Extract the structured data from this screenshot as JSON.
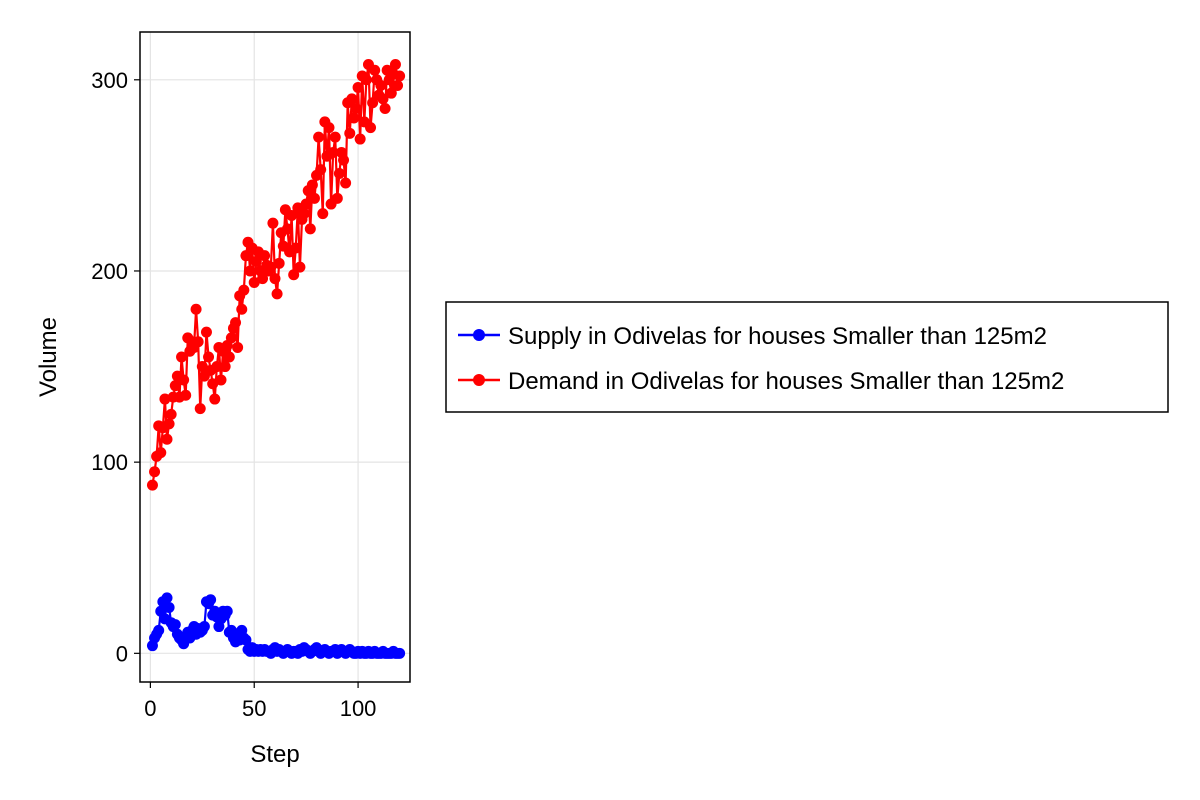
{
  "chart_data": {
    "type": "line",
    "title": "",
    "xlabel": "Step",
    "ylabel": "Volume",
    "xlim": [
      -5,
      125
    ],
    "ylim": [
      -15,
      325
    ],
    "xticks": [
      0,
      50,
      100
    ],
    "yticks": [
      0,
      100,
      200,
      300
    ],
    "xtick_labels": [
      "0",
      "50",
      "100"
    ],
    "ytick_labels": [
      "0",
      "100",
      "200",
      "300"
    ],
    "grid": true,
    "legend_position": "right",
    "series": [
      {
        "name": "Supply in Odivelas for houses Smaller than 125m2",
        "color": "#0000ff",
        "marker": "circle",
        "x": [
          1,
          2,
          3,
          4,
          5,
          6,
          7,
          8,
          9,
          10,
          11,
          12,
          13,
          14,
          15,
          16,
          17,
          18,
          19,
          20,
          21,
          22,
          23,
          24,
          25,
          26,
          27,
          28,
          29,
          30,
          31,
          32,
          33,
          34,
          35,
          36,
          37,
          38,
          39,
          40,
          41,
          42,
          43,
          44,
          45,
          46,
          47,
          48,
          49,
          50,
          51,
          52,
          53,
          54,
          55,
          56,
          57,
          58,
          59,
          60,
          61,
          62,
          63,
          64,
          65,
          66,
          67,
          68,
          69,
          70,
          71,
          72,
          73,
          74,
          75,
          76,
          77,
          78,
          79,
          80,
          81,
          82,
          83,
          84,
          85,
          86,
          87,
          88,
          89,
          90,
          91,
          92,
          93,
          94,
          95,
          96,
          97,
          98,
          99,
          100,
          101,
          102,
          103,
          104,
          105,
          106,
          107,
          108,
          109,
          110,
          111,
          112,
          113,
          114,
          115,
          116,
          117,
          118,
          119,
          120
        ],
        "y": [
          4,
          8,
          10,
          12,
          22,
          27,
          18,
          29,
          24,
          16,
          14,
          15,
          10,
          8,
          7,
          5,
          9,
          11,
          8,
          12,
          14,
          10,
          13,
          11,
          12,
          14,
          27,
          26,
          28,
          20,
          22,
          19,
          14,
          18,
          22,
          20,
          22,
          11,
          12,
          8,
          6,
          10,
          7,
          12,
          8,
          7,
          2,
          1,
          3,
          1,
          2,
          1,
          2,
          1,
          2,
          1,
          1,
          0,
          2,
          3,
          1,
          2,
          1,
          0,
          1,
          2,
          1,
          0,
          1,
          1,
          0,
          2,
          1,
          3,
          2,
          1,
          0,
          1,
          2,
          3,
          1,
          0,
          1,
          2,
          1,
          0,
          1,
          1,
          2,
          0,
          1,
          2,
          1,
          0,
          1,
          2,
          1,
          0,
          0,
          1,
          0,
          1,
          0,
          0,
          1,
          0,
          0,
          1,
          0,
          0,
          0,
          1,
          0,
          0,
          0,
          0,
          1,
          0,
          0,
          0
        ]
      },
      {
        "name": "Demand in Odivelas for houses Smaller than 125m2",
        "color": "#ff0000",
        "marker": "circle",
        "x": [
          1,
          2,
          3,
          4,
          5,
          6,
          7,
          8,
          9,
          10,
          11,
          12,
          13,
          14,
          15,
          16,
          17,
          18,
          19,
          20,
          21,
          22,
          23,
          24,
          25,
          26,
          27,
          28,
          29,
          30,
          31,
          32,
          33,
          34,
          35,
          36,
          37,
          38,
          39,
          40,
          41,
          42,
          43,
          44,
          45,
          46,
          47,
          48,
          49,
          50,
          51,
          52,
          53,
          54,
          55,
          56,
          57,
          58,
          59,
          60,
          61,
          62,
          63,
          64,
          65,
          66,
          67,
          68,
          69,
          70,
          71,
          72,
          73,
          74,
          75,
          76,
          77,
          78,
          79,
          80,
          81,
          82,
          83,
          84,
          85,
          86,
          87,
          88,
          89,
          90,
          91,
          92,
          93,
          94,
          95,
          96,
          97,
          98,
          99,
          100,
          101,
          102,
          103,
          104,
          105,
          106,
          107,
          108,
          109,
          110,
          111,
          112,
          113,
          114,
          115,
          116,
          117,
          118,
          119,
          120
        ],
        "y": [
          88,
          95,
          103,
          119,
          105,
          118,
          133,
          112,
          120,
          125,
          134,
          140,
          145,
          134,
          155,
          143,
          135,
          165,
          158,
          163,
          160,
          180,
          163,
          128,
          150,
          145,
          168,
          155,
          148,
          141,
          133,
          150,
          160,
          143,
          158,
          150,
          161,
          155,
          165,
          170,
          173,
          160,
          187,
          180,
          190,
          208,
          215,
          200,
          212,
          194,
          205,
          210,
          200,
          196,
          208,
          203,
          200,
          202,
          225,
          196,
          188,
          204,
          220,
          213,
          232,
          222,
          210,
          229,
          198,
          212,
          233,
          202,
          227,
          230,
          235,
          242,
          222,
          245,
          238,
          250,
          270,
          253,
          230,
          278,
          260,
          275,
          235,
          262,
          270,
          238,
          251,
          262,
          258,
          246,
          288,
          272,
          290,
          280,
          285,
          296,
          269,
          302,
          278,
          300,
          308,
          275,
          288,
          305,
          300,
          292,
          297,
          290,
          285,
          305,
          300,
          293,
          303,
          308,
          297,
          302
        ]
      }
    ]
  }
}
